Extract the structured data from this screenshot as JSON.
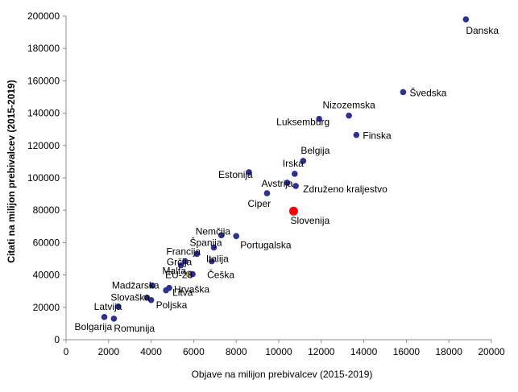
{
  "chart_data": {
    "type": "scatter",
    "xlabel": "Objave na milijon prebivalcev (2015-2019)",
    "ylabel": "Citati na milijon prebivalcev (2015-2019)",
    "xlim": [
      0,
      20000
    ],
    "ylim": [
      0,
      200000
    ],
    "xticks": [
      "0",
      "2000",
      "4000",
      "6000",
      "8000",
      "10000",
      "12000",
      "14000",
      "16000",
      "18000",
      "20000"
    ],
    "yticks": [
      "0",
      "20000",
      "40000",
      "60000",
      "80000",
      "100000",
      "120000",
      "140000",
      "160000",
      "180000",
      "200000"
    ],
    "grid": false,
    "default_color": "#2E3192",
    "highlight_color": "#FF0000",
    "eu_color": "#F0C05A",
    "points": [
      {
        "label": "Danska",
        "x": 18800,
        "y": 198000
      },
      {
        "label": "Švedska",
        "x": 15850,
        "y": 153000
      },
      {
        "label": "Nizozemska",
        "x": 13300,
        "y": 138500
      },
      {
        "label": "Luksemburg",
        "x": 11900,
        "y": 136500
      },
      {
        "label": "Finska",
        "x": 13650,
        "y": 126500
      },
      {
        "label": "Belgija",
        "x": 11150,
        "y": 110500
      },
      {
        "label": "Irska",
        "x": 10750,
        "y": 102500
      },
      {
        "label": "Estonija",
        "x": 8600,
        "y": 103500
      },
      {
        "label": "Avstrija",
        "x": 10400,
        "y": 97000
      },
      {
        "label": "Združeno kraljestvo",
        "x": 10800,
        "y": 95000
      },
      {
        "label": "Ciper",
        "x": 9450,
        "y": 90500
      },
      {
        "label": "Slovenija",
        "x": 10700,
        "y": 79500,
        "highlight": true
      },
      {
        "label": "Nemčija",
        "x": 7300,
        "y": 64500
      },
      {
        "label": "Portugalska",
        "x": 8000,
        "y": 64000
      },
      {
        "label": "Španija",
        "x": 6950,
        "y": 57000
      },
      {
        "label": "Francija",
        "x": 6150,
        "y": 53000
      },
      {
        "label": "Grčija",
        "x": 5600,
        "y": 48500
      },
      {
        "label": "Italija",
        "x": 6850,
        "y": 48500
      },
      {
        "label": "Malta",
        "x": 5400,
        "y": 46000
      },
      {
        "label": "EU-28",
        "x": 5800,
        "y": 40500,
        "eu": true
      },
      {
        "label": "Češka",
        "x": 5950,
        "y": 40500
      },
      {
        "label": "Madžarska",
        "x": 4050,
        "y": 33500
      },
      {
        "label": "Hrvaška",
        "x": 4850,
        "y": 32000
      },
      {
        "label": "Litva",
        "x": 4700,
        "y": 30500
      },
      {
        "label": "Slovaška",
        "x": 3800,
        "y": 26000
      },
      {
        "label": "Poljska",
        "x": 4000,
        "y": 24500
      },
      {
        "label": "Latvija",
        "x": 2450,
        "y": 20500
      },
      {
        "label": "Bolgarija",
        "x": 1800,
        "y": 14000
      },
      {
        "label": "Romunija",
        "x": 2250,
        "y": 13000
      }
    ]
  }
}
